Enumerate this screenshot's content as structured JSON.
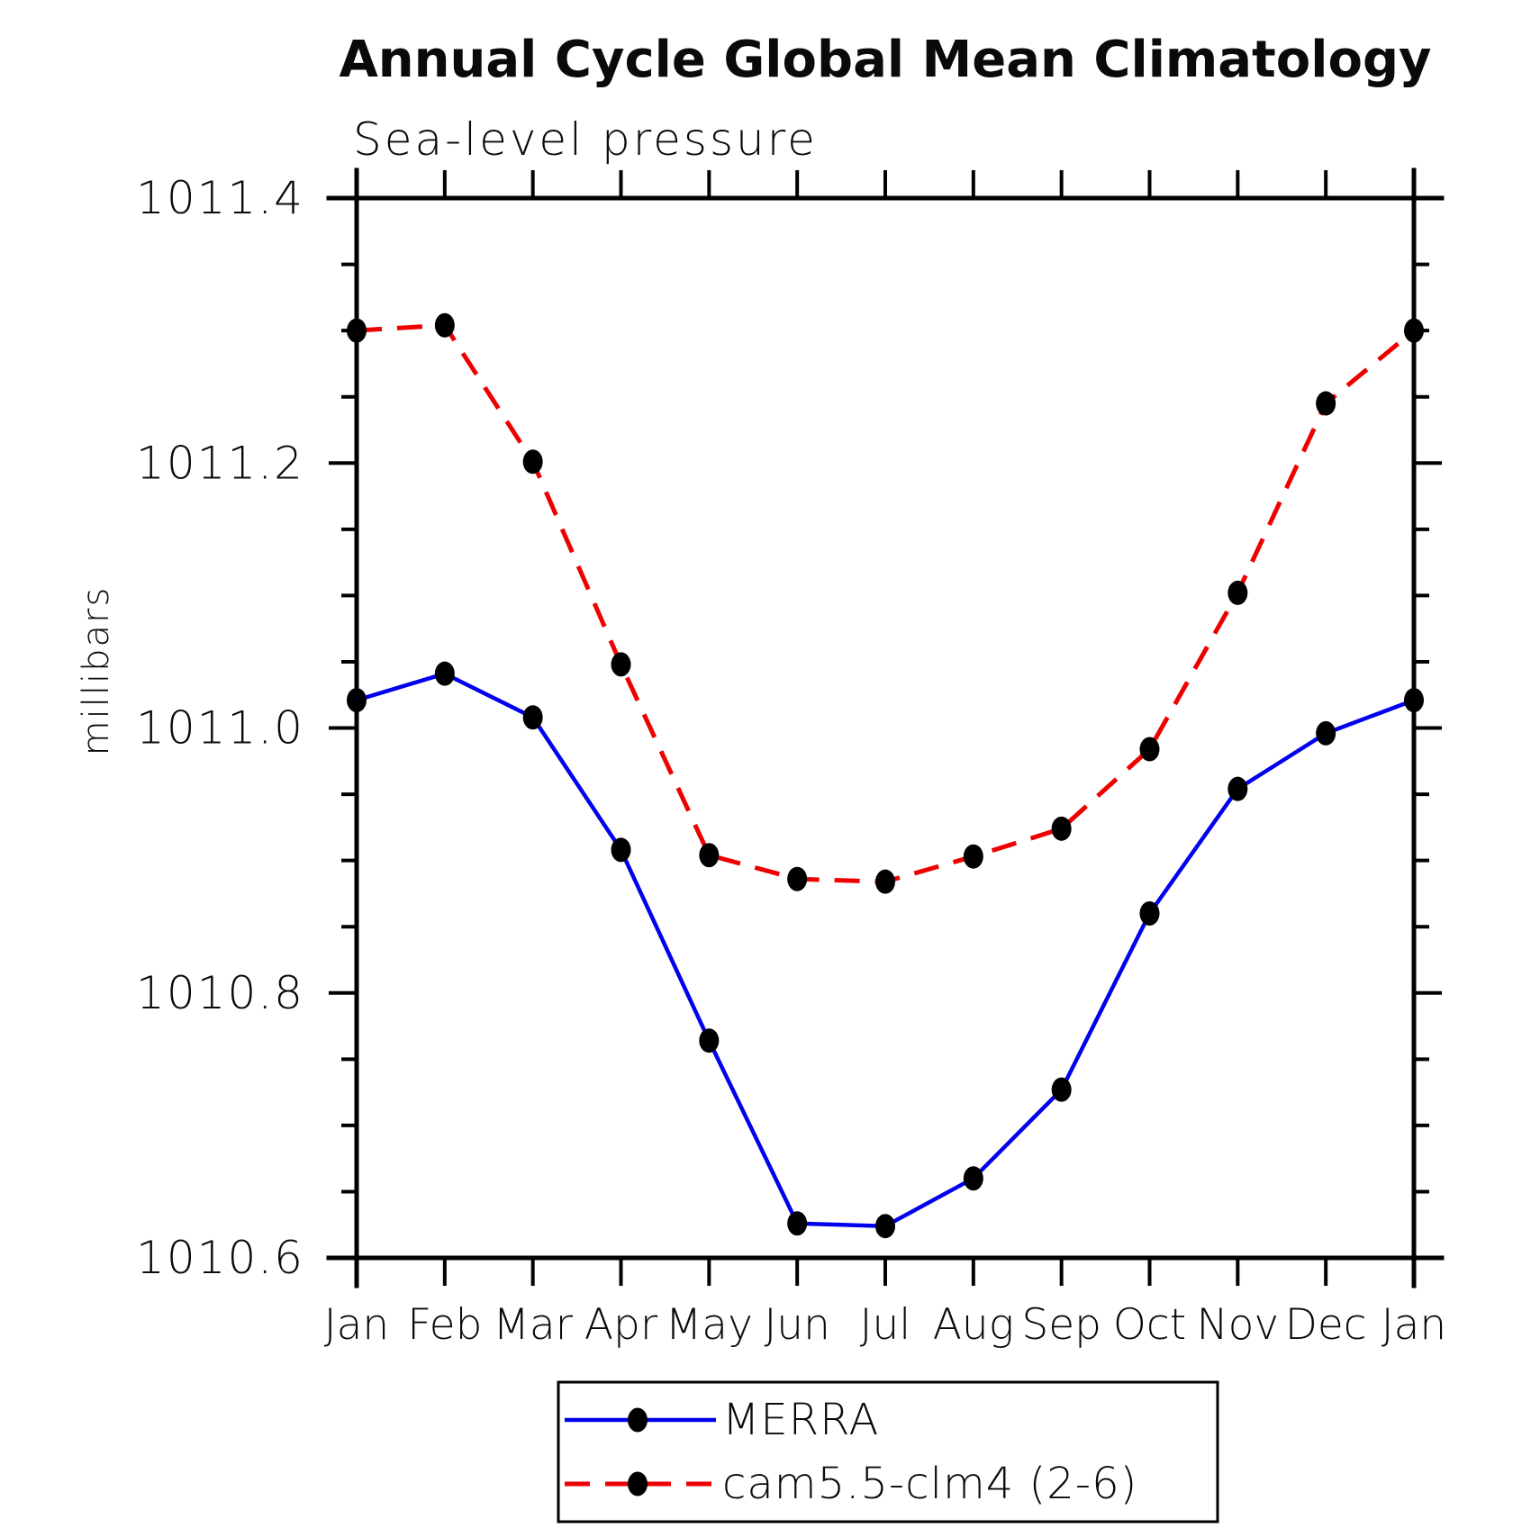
{
  "title": "Annual Cycle Global Mean Climatology",
  "subtitle": "Sea-level pressure",
  "ylabel": "millibars",
  "colors": {
    "merra_line": "#0000ee",
    "cam_line": "#ee0000",
    "marker": "#000000",
    "axis": "#000000"
  },
  "legend": {
    "items": [
      {
        "label": "MERRA",
        "style": "solid"
      },
      {
        "label": "cam5.5-clm4 (2-6)",
        "style": "dashed"
      }
    ]
  },
  "chart_data": {
    "type": "line",
    "title": "Annual Cycle Global Mean Climatology",
    "subtitle": "Sea-level pressure",
    "ylabel": "millibars",
    "categories": [
      "Jan",
      "Feb",
      "Mar",
      "Apr",
      "May",
      "Jun",
      "Jul",
      "Aug",
      "Sep",
      "Oct",
      "Nov",
      "Dec",
      "Jan"
    ],
    "series": [
      {
        "name": "MERRA",
        "style": "solid",
        "color": "#0000ee",
        "values": [
          1011.021,
          1011.041,
          1011.008,
          1010.908,
          1010.764,
          1010.626,
          1010.624,
          1010.66,
          1010.727,
          1010.86,
          1010.954,
          1010.996,
          1011.021
        ]
      },
      {
        "name": "cam5.5-clm4 (2-6)",
        "style": "dashed",
        "color": "#ee0000",
        "values": [
          1011.3,
          1011.304,
          1011.201,
          1011.048,
          1010.904,
          1010.886,
          1010.884,
          1010.903,
          1010.924,
          1010.984,
          1011.102,
          1011.245,
          1011.3
        ]
      }
    ],
    "ylim": [
      1010.6,
      1011.4
    ],
    "yticks_major": [
      1010.6,
      1010.8,
      1011.0,
      1011.2,
      1011.4
    ],
    "ytick_labels": [
      "1010.6",
      "1010.8",
      "1011.0",
      "1011.2",
      "1011.4"
    ],
    "ytick_minor_step": 0.05,
    "grid": "off",
    "legend_position": "bottom"
  }
}
